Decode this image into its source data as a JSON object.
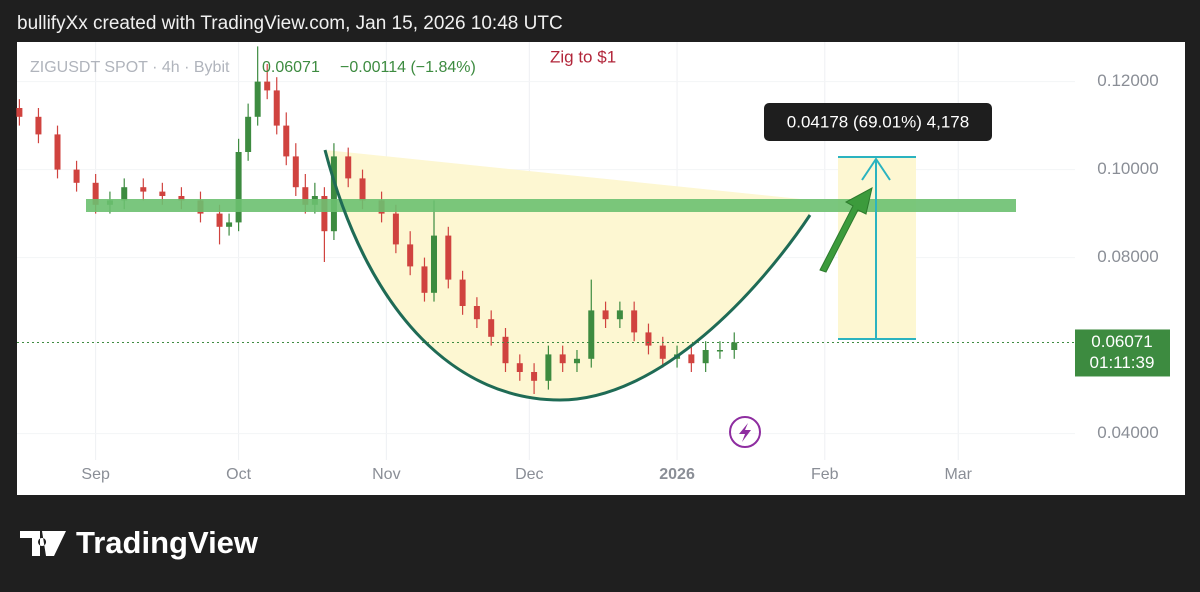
{
  "header": "bullifyXx created with TradingView.com, Jan 15, 2026 10:48 UTC",
  "logo": "TradingView",
  "chart_data": {
    "type": "candlestick",
    "title": "ZIGUSDT SPOT · 4h · Bybit",
    "change": "−0.00114 (−1.84%)",
    "annotation": "Zig to $1",
    "measure_label": "0.04178 (69.01%) 4,178",
    "countdown": "01:11:39",
    "up_color": "#3d8b40",
    "down_color": "#d0433f",
    "grid": true,
    "x": [
      -16,
      -12,
      -8,
      -4,
      0,
      3,
      6,
      10,
      14,
      18,
      22,
      26,
      28,
      30,
      32,
      34,
      36,
      38,
      40,
      42,
      44,
      46,
      48,
      50,
      53,
      56,
      60,
      63,
      66,
      69,
      71,
      74,
      77,
      80,
      83,
      86,
      89,
      92,
      95,
      98,
      101,
      104,
      107,
      110,
      113,
      116,
      119,
      122,
      125,
      128,
      131,
      134
    ],
    "open": [
      0.114,
      0.112,
      0.108,
      0.1,
      0.097,
      0.092,
      0.093,
      0.096,
      0.095,
      0.094,
      0.093,
      0.09,
      0.087,
      0.088,
      0.104,
      0.112,
      0.12,
      0.118,
      0.11,
      0.103,
      0.096,
      0.092,
      0.094,
      0.086,
      0.103,
      0.098,
      0.093,
      0.09,
      0.083,
      0.078,
      0.072,
      0.085,
      0.075,
      0.069,
      0.066,
      0.062,
      0.056,
      0.054,
      0.052,
      0.058,
      0.056,
      0.057,
      0.068,
      0.066,
      0.068,
      0.063,
      0.06,
      0.057,
      0.058,
      0.056,
      0.059,
      0.059
    ],
    "high": [
      0.116,
      0.114,
      0.11,
      0.102,
      0.099,
      0.095,
      0.098,
      0.098,
      0.097,
      0.096,
      0.095,
      0.092,
      0.09,
      0.107,
      0.115,
      0.128,
      0.124,
      0.121,
      0.113,
      0.106,
      0.099,
      0.097,
      0.096,
      0.106,
      0.105,
      0.1,
      0.095,
      0.092,
      0.086,
      0.08,
      0.093,
      0.087,
      0.077,
      0.071,
      0.068,
      0.064,
      0.058,
      0.056,
      0.06,
      0.06,
      0.059,
      0.075,
      0.07,
      0.07,
      0.07,
      0.065,
      0.062,
      0.06,
      0.06,
      0.061,
      0.061,
      0.063
    ],
    "low": [
      0.11,
      0.106,
      0.098,
      0.095,
      0.09,
      0.09,
      0.091,
      0.093,
      0.092,
      0.091,
      0.088,
      0.083,
      0.085,
      0.086,
      0.102,
      0.11,
      0.116,
      0.108,
      0.101,
      0.094,
      0.09,
      0.09,
      0.079,
      0.084,
      0.096,
      0.091,
      0.088,
      0.081,
      0.076,
      0.07,
      0.07,
      0.073,
      0.067,
      0.064,
      0.06,
      0.054,
      0.052,
      0.049,
      0.05,
      0.054,
      0.054,
      0.055,
      0.064,
      0.064,
      0.061,
      0.058,
      0.055,
      0.055,
      0.054,
      0.054,
      0.057,
      0.057
    ],
    "close": [
      0.112,
      0.108,
      0.1,
      0.097,
      0.092,
      0.093,
      0.096,
      0.095,
      0.094,
      0.093,
      0.09,
      0.087,
      0.088,
      0.104,
      0.112,
      0.12,
      0.118,
      0.11,
      0.103,
      0.096,
      0.092,
      0.094,
      0.086,
      0.103,
      0.098,
      0.093,
      0.09,
      0.083,
      0.078,
      0.072,
      0.085,
      0.075,
      0.069,
      0.066,
      0.062,
      0.056,
      0.054,
      0.052,
      0.058,
      0.056,
      0.057,
      0.068,
      0.066,
      0.068,
      0.063,
      0.06,
      0.057,
      0.058,
      0.056,
      0.059,
      0.059,
      0.06071
    ],
    "xlim": [
      -16.5,
      205.5
    ],
    "xticks": [
      {
        "value": 0,
        "label": "Sep"
      },
      {
        "value": 30,
        "label": "Oct"
      },
      {
        "value": 61,
        "label": "Nov"
      },
      {
        "value": 91,
        "label": "Dec"
      },
      {
        "value": 122,
        "label": "2026"
      },
      {
        "value": 153,
        "label": "Feb"
      },
      {
        "value": 181,
        "label": "Mar"
      }
    ],
    "ylim": [
      0.034,
      0.129
    ],
    "yticks": [
      {
        "value": 0.04,
        "label": "0.04000"
      },
      {
        "value": 0.08,
        "label": "0.08000"
      },
      {
        "value": 0.1,
        "label": "0.10000"
      },
      {
        "value": 0.12,
        "label": "0.12000"
      }
    ]
  }
}
